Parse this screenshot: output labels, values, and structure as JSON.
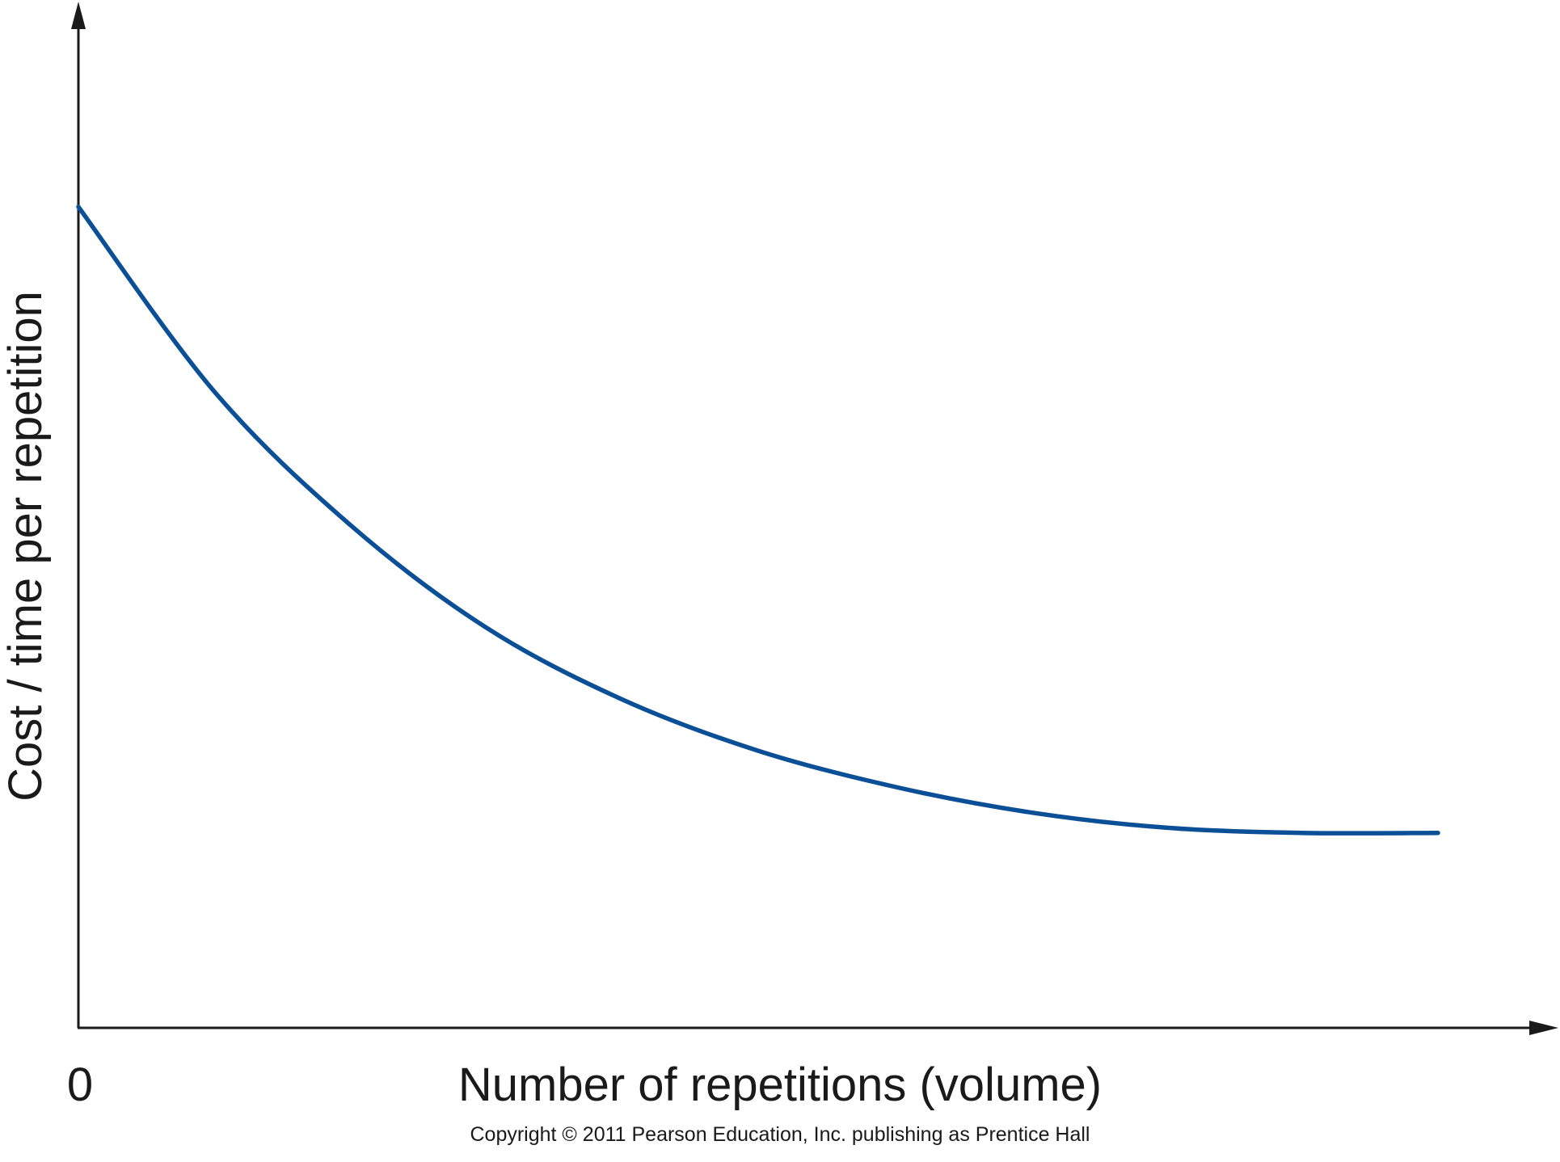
{
  "chart_data": {
    "type": "line",
    "xlabel": "Number of repetitions (volume)",
    "ylabel": "Cost / time per repetition",
    "x_ticks": [
      "0"
    ],
    "xlim": [
      0,
      1
    ],
    "ylim": [
      0,
      1
    ],
    "grid": false,
    "legend": "none",
    "curve_shape": "exponential-decay",
    "series": [
      {
        "color": "#0b4f96",
        "x": [
          0,
          0.1,
          0.2,
          0.3,
          0.4,
          0.5,
          0.6,
          0.7,
          0.8,
          0.9,
          1.0
        ],
        "y": [
          0.8,
          0.62,
          0.49,
          0.39,
          0.32,
          0.27,
          0.235,
          0.21,
          0.195,
          0.19,
          0.19
        ]
      }
    ]
  },
  "footer": {
    "copyright": "Copyright © 2011 Pearson Education, Inc. publishing as Prentice Hall"
  },
  "colors": {
    "axis": "#1a1a1a",
    "curve": "#0b4f96",
    "background": "#ffffff"
  }
}
